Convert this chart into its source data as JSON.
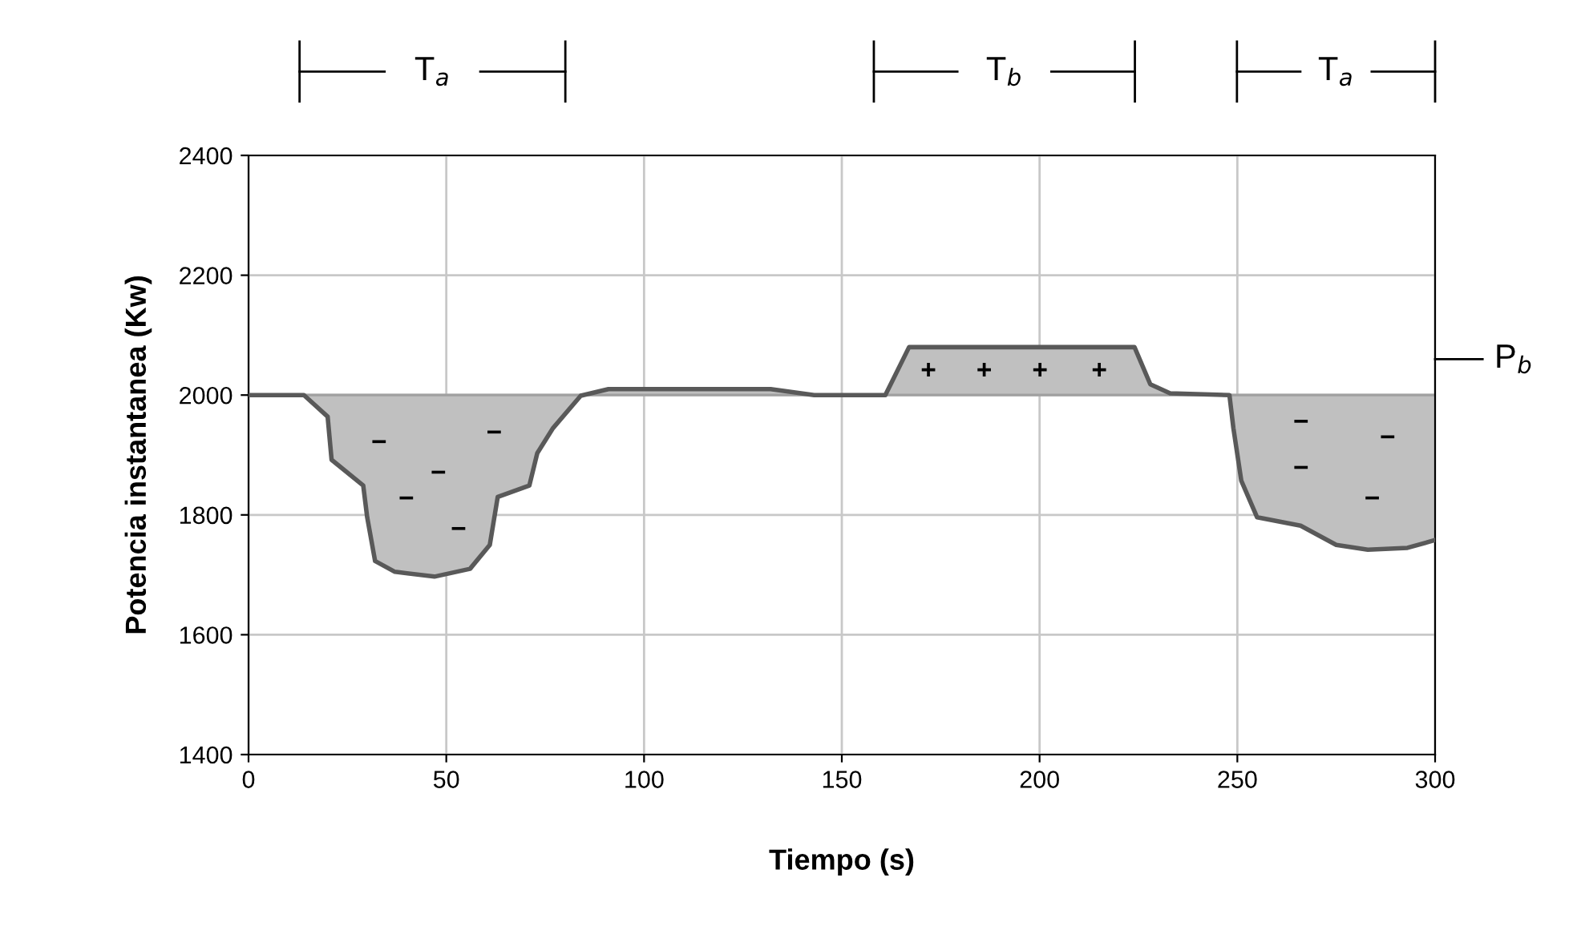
{
  "chart_data": {
    "type": "line",
    "xlabel": "Tiempo (s)",
    "ylabel": "Potencia instantanea (Kw)",
    "xlim": [
      0,
      300
    ],
    "xticks": [
      0,
      50,
      100,
      150,
      200,
      250,
      300
    ],
    "ylim": [
      1400,
      2400
    ],
    "yticks": [
      1400,
      1600,
      1800,
      2000,
      2200,
      2400
    ],
    "grid": true,
    "marker": "none",
    "line_style": "solid",
    "series": [
      {
        "color": "#595959",
        "x": [
          0,
          14,
          20,
          21,
          29,
          30,
          32,
          37,
          47,
          56,
          61,
          63,
          71,
          73,
          77,
          84,
          91,
          132,
          143,
          161,
          167,
          224,
          228,
          233,
          248,
          249,
          251,
          255,
          266,
          275,
          283,
          293,
          300
        ],
        "values": [
          2000,
          2000,
          1964,
          1892,
          1849,
          1796,
          1723,
          1705,
          1697,
          1710,
          1750,
          1830,
          1849,
          1903,
          1945,
          1999,
          2010,
          2010,
          2000,
          2000,
          2080,
          2080,
          2018,
          2003,
          2000,
          1945,
          1857,
          1796,
          1782,
          1750,
          1742,
          1745,
          1758
        ]
      }
    ],
    "ref_lines": [
      {
        "axis": "y",
        "value": 2000,
        "label": "P$_{b}$"
      }
    ],
    "annotations": [
      "T$_{a}$",
      "T$_{b}$",
      "T$_{a}$",
      "−",
      "−",
      "−",
      "−",
      "−",
      "+",
      "+",
      "+",
      "+",
      "−",
      "−",
      "−",
      "−"
    ]
  }
}
